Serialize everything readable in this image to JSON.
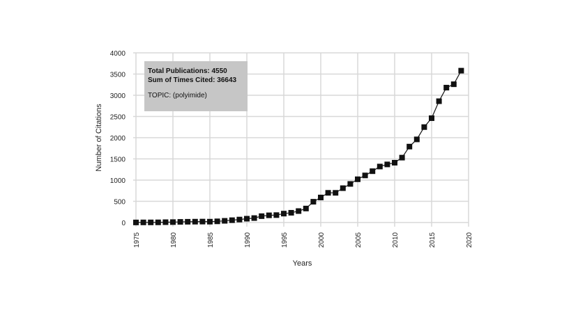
{
  "chart_data": {
    "type": "line",
    "title": "",
    "xlabel": "Years",
    "ylabel": "Number of Citations",
    "xlim": [
      1975,
      2020
    ],
    "ylim": [
      0,
      4000
    ],
    "xticks": [
      "1975",
      "1980",
      "1985",
      "1990",
      "1995",
      "2000",
      "2005",
      "2010",
      "2015",
      "2020"
    ],
    "yticks": [
      "0",
      "500",
      "1000",
      "1500",
      "2000",
      "2500",
      "3000",
      "3500",
      "4000"
    ],
    "grid": true,
    "marker": "square",
    "color": "#111111",
    "x": [
      1975,
      1976,
      1977,
      1978,
      1979,
      1980,
      1981,
      1982,
      1983,
      1984,
      1985,
      1986,
      1987,
      1988,
      1989,
      1990,
      1991,
      1992,
      1993,
      1994,
      1995,
      1996,
      1997,
      1998,
      1999,
      2000,
      2001,
      2002,
      2003,
      2004,
      2005,
      2006,
      2007,
      2008,
      2009,
      2010,
      2011,
      2012,
      2013,
      2014,
      2015,
      2016,
      2017,
      2018,
      2019
    ],
    "values": [
      2,
      3,
      3,
      4,
      8,
      10,
      15,
      18,
      20,
      22,
      20,
      28,
      40,
      55,
      70,
      90,
      105,
      150,
      170,
      175,
      210,
      230,
      270,
      330,
      490,
      590,
      700,
      700,
      810,
      910,
      1020,
      1110,
      1210,
      1320,
      1370,
      1410,
      1530,
      1790,
      1960,
      2250,
      2460,
      2860,
      3180,
      3260,
      3580
    ],
    "annotation": {
      "line1": "Total Publications: 4550",
      "line2": "Sum of Times Cited: 36643",
      "line3": "TOPIC: (polyimide)"
    }
  }
}
